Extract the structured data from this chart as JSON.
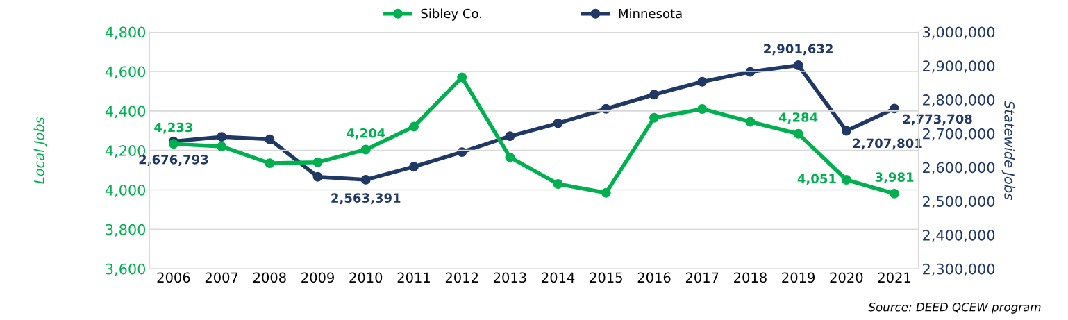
{
  "chart_data": {
    "type": "line",
    "categories": [
      "2006",
      "2007",
      "2008",
      "2009",
      "2010",
      "2011",
      "2012",
      "2013",
      "2014",
      "2015",
      "2016",
      "2017",
      "2018",
      "2019",
      "2020",
      "2021"
    ],
    "series": [
      {
        "name": "Sibley Co.",
        "color": "#00b050",
        "values": [
          4233,
          4220,
          4135,
          4140,
          4204,
          4320,
          4570,
          4165,
          4030,
          3985,
          4365,
          4410,
          4345,
          4284,
          4051,
          3981
        ],
        "value_labels": [
          "4,233",
          null,
          null,
          null,
          "4,204",
          null,
          null,
          null,
          null,
          null,
          null,
          null,
          null,
          "4,284",
          "4,051",
          "3,981"
        ]
      },
      {
        "name": "Minnesota",
        "color": "#1f3864",
        "axis": "y2",
        "values": [
          2676793,
          2690000,
          2683000,
          2572000,
          2563391,
          2602000,
          2645000,
          2692000,
          2730000,
          2773000,
          2815000,
          2853000,
          2882000,
          2901632,
          2707801,
          2773708
        ],
        "value_labels": [
          "2,676,793",
          null,
          null,
          null,
          "2,563,391",
          null,
          null,
          null,
          null,
          null,
          null,
          null,
          null,
          "2,901,632",
          "2,707,801",
          "2,773,708"
        ]
      }
    ],
    "ylabel": "Local Jobs",
    "y2label": "Statewide Jobs",
    "ylim": [
      3600,
      4800
    ],
    "yticks": [
      {
        "value": 3600,
        "label": "3,600"
      },
      {
        "value": 3800,
        "label": "3,800"
      },
      {
        "value": 4000,
        "label": "4,000"
      },
      {
        "value": 4200,
        "label": "4,200"
      },
      {
        "value": 4400,
        "label": "4,400"
      },
      {
        "value": 4600,
        "label": "4,600"
      },
      {
        "value": 4800,
        "label": "4,800"
      }
    ],
    "y2lim": [
      2300000,
      3000000
    ],
    "y2ticks": [
      {
        "value": 2300000,
        "label": "2,300,000"
      },
      {
        "value": 2400000,
        "label": "2,400,000"
      },
      {
        "value": 2500000,
        "label": "2,500,000"
      },
      {
        "value": 2600000,
        "label": "2,600,000"
      },
      {
        "value": 2700000,
        "label": "2,700,000"
      },
      {
        "value": 2800000,
        "label": "2,800,000"
      },
      {
        "value": 2900000,
        "label": "2,900,000"
      },
      {
        "value": 3000000,
        "label": "3,000,000"
      }
    ],
    "grid": "y",
    "legend": "top",
    "marker": "circle",
    "line_style": "solid",
    "annotations": [
      "Source: DEED QCEW program"
    ]
  }
}
